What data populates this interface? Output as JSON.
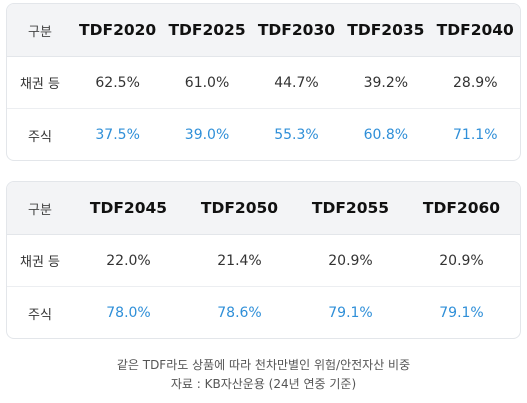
{
  "table1": {
    "header_label": "구분",
    "columns": [
      "TDF2020",
      "TDF2025",
      "TDF2030",
      "TDF2035",
      "TDF2040"
    ],
    "rows": [
      {
        "label": "채권 등",
        "values": [
          "62.5%",
          "61.0%",
          "44.7%",
          "39.2%",
          "28.9%"
        ],
        "color": "#333333"
      },
      {
        "label": "주식",
        "values": [
          "37.5%",
          "39.0%",
          "55.3%",
          "60.8%",
          "71.1%"
        ],
        "color": "#2f8fd8"
      }
    ]
  },
  "table2": {
    "header_label": "구분",
    "columns": [
      "TDF2045",
      "TDF2050",
      "TDF2055",
      "TDF2060"
    ],
    "rows": [
      {
        "label": "채권 등",
        "values": [
          "22.0%",
          "21.4%",
          "20.9%",
          "20.9%"
        ],
        "color": "#333333"
      },
      {
        "label": "주식",
        "values": [
          "78.0%",
          "78.6%",
          "79.1%",
          "79.1%"
        ],
        "color": "#2f8fd8"
      }
    ]
  },
  "caption": {
    "line1": "같은 TDF라도 상품에 따라 천차만별인 위험/안전자산 비중",
    "line2": "자료 : KB자산운용 (24년 연중 기준)"
  }
}
